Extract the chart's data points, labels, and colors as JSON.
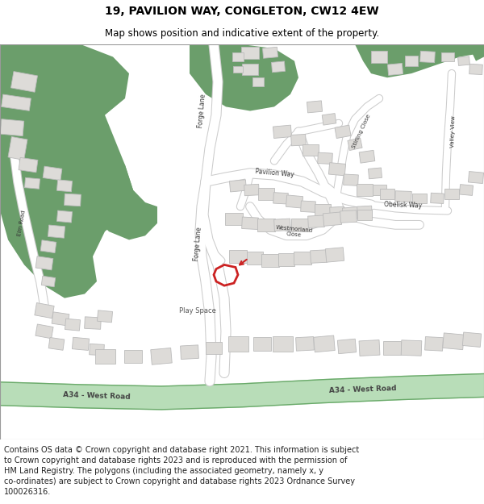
{
  "title_line1": "19, PAVILION WAY, CONGLETON, CW12 4EW",
  "title_line2": "Map shows position and indicative extent of the property.",
  "footer_lines": [
    "Contains OS data © Crown copyright and database right 2021. This information is subject",
    "to Crown copyright and database rights 2023 and is reproduced with the permission of",
    "HM Land Registry. The polygons (including the associated geometry, namely x, y",
    "co-ordinates) are subject to Crown copyright and database rights 2023 Ordnance Survey",
    "100026316."
  ],
  "title_fontsize": 10,
  "subtitle_fontsize": 8.5,
  "footer_fontsize": 7.0,
  "bg_color": "#ffffff",
  "map_bg": "#ffffff",
  "green_color": "#6b9e6b",
  "a_road_fill": "#b8ddb8",
  "a_road_edge": "#6aaa6a",
  "building_color": "#dddbd8",
  "building_ec": "#bbbbbb",
  "highlight_color": "#cc2222",
  "road_color": "#ffffff",
  "road_ec": "#cccccc"
}
